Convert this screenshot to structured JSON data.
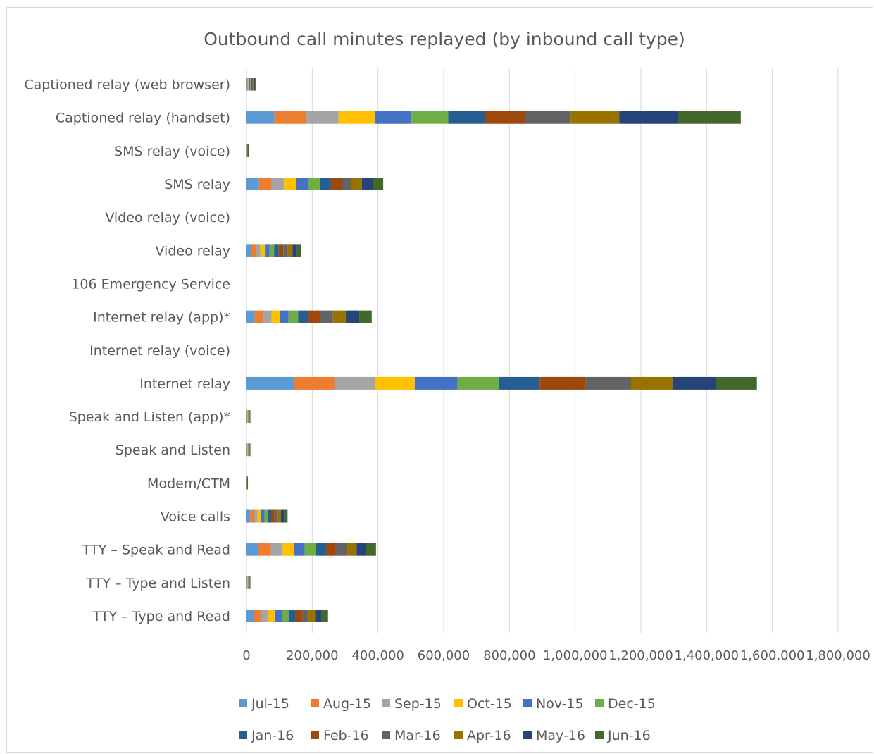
{
  "chart_data": {
    "type": "bar",
    "orientation": "horizontal",
    "stacked": true,
    "title": "Outbound call minutes replayed (by inbound call type)",
    "xlabel": "",
    "ylabel": "",
    "xlim": [
      0,
      1800000
    ],
    "x_ticks": [
      0,
      200000,
      400000,
      600000,
      800000,
      1000000,
      1200000,
      1400000,
      1600000,
      1800000
    ],
    "x_tick_labels": [
      "0",
      "200,000",
      "400,000",
      "600,000",
      "800,000",
      "1,000,000",
      "1,200,000",
      "1,400,000",
      "1,600,000",
      "1,800,000"
    ],
    "grid": "vertical",
    "legend": "bottom",
    "categories": [
      "Captioned relay (web browser)",
      "Captioned relay (handset)",
      "SMS relay (voice)",
      "SMS relay",
      "Video relay (voice)",
      "Video relay",
      "106 Emergency Service",
      "Internet relay (app)*",
      "Internet relay (voice)",
      "Internet relay",
      "Speak and Listen (app)*",
      "Speak and Listen",
      "Modem/CTM",
      "Voice calls",
      "TTY – Speak and Read",
      "TTY – Type and Listen",
      "TTY – Type and Read"
    ],
    "series": [
      {
        "name": "Jul-15",
        "color": "#5B9BD5",
        "values": [
          2000,
          85000,
          500,
          38000,
          0,
          14000,
          0,
          25000,
          0,
          145000,
          1000,
          1000,
          300,
          11000,
          36000,
          1000,
          23000
        ]
      },
      {
        "name": "Aug-15",
        "color": "#ED7D31",
        "values": [
          2000,
          95000,
          500,
          38000,
          0,
          14000,
          0,
          25000,
          0,
          125000,
          1000,
          1000,
          300,
          11000,
          38000,
          1000,
          22000
        ]
      },
      {
        "name": "Sep-15",
        "color": "#A5A5A5",
        "values": [
          2000,
          100000,
          500,
          38000,
          0,
          14000,
          0,
          26000,
          0,
          120000,
          1000,
          1000,
          300,
          11000,
          36000,
          1000,
          21000
        ]
      },
      {
        "name": "Oct-15",
        "color": "#FFC000",
        "values": [
          2500,
          110000,
          500,
          37000,
          0,
          14000,
          0,
          26000,
          0,
          122000,
          1000,
          1000,
          300,
          11000,
          34000,
          1000,
          21000
        ]
      },
      {
        "name": "Nov-15",
        "color": "#4472C4",
        "values": [
          2500,
          112000,
          500,
          37000,
          0,
          14000,
          0,
          26000,
          0,
          130000,
          1000,
          1000,
          300,
          11000,
          33000,
          1000,
          21000
        ]
      },
      {
        "name": "Dec-15",
        "color": "#70AD47",
        "values": [
          2500,
          112000,
          500,
          35000,
          0,
          14000,
          0,
          29000,
          0,
          125000,
          1000,
          1000,
          300,
          10000,
          33000,
          1000,
          20000
        ]
      },
      {
        "name": "Jan-16",
        "color": "#255E91",
        "values": [
          2500,
          112000,
          500,
          34000,
          0,
          14000,
          0,
          30000,
          0,
          125000,
          1000,
          1000,
          300,
          10000,
          32000,
          1000,
          21000
        ]
      },
      {
        "name": "Feb-16",
        "color": "#9E480E",
        "values": [
          2500,
          122000,
          500,
          34000,
          0,
          14000,
          0,
          38000,
          0,
          140000,
          1000,
          1000,
          300,
          10000,
          30000,
          1000,
          22000
        ]
      },
      {
        "name": "Mar-16",
        "color": "#636363",
        "values": [
          2500,
          138000,
          500,
          28000,
          0,
          14000,
          0,
          38000,
          0,
          138000,
          1000,
          1000,
          300,
          10000,
          33000,
          1000,
          18000
        ]
      },
      {
        "name": "Apr-16",
        "color": "#997300",
        "values": [
          2500,
          148000,
          500,
          32000,
          0,
          14000,
          0,
          39000,
          0,
          128000,
          1000,
          1000,
          300,
          10000,
          30000,
          1000,
          20000
        ]
      },
      {
        "name": "May-16",
        "color": "#264478",
        "values": [
          2500,
          178000,
          500,
          33000,
          0,
          13000,
          0,
          41000,
          0,
          130000,
          1000,
          1000,
          300,
          10000,
          29000,
          1000,
          19000
        ]
      },
      {
        "name": "Jun-16",
        "color": "#43682B",
        "values": [
          2500,
          192000,
          500,
          32000,
          0,
          12000,
          0,
          38000,
          0,
          125000,
          1000,
          1000,
          300,
          10000,
          30000,
          1000,
          20000
        ]
      }
    ]
  }
}
